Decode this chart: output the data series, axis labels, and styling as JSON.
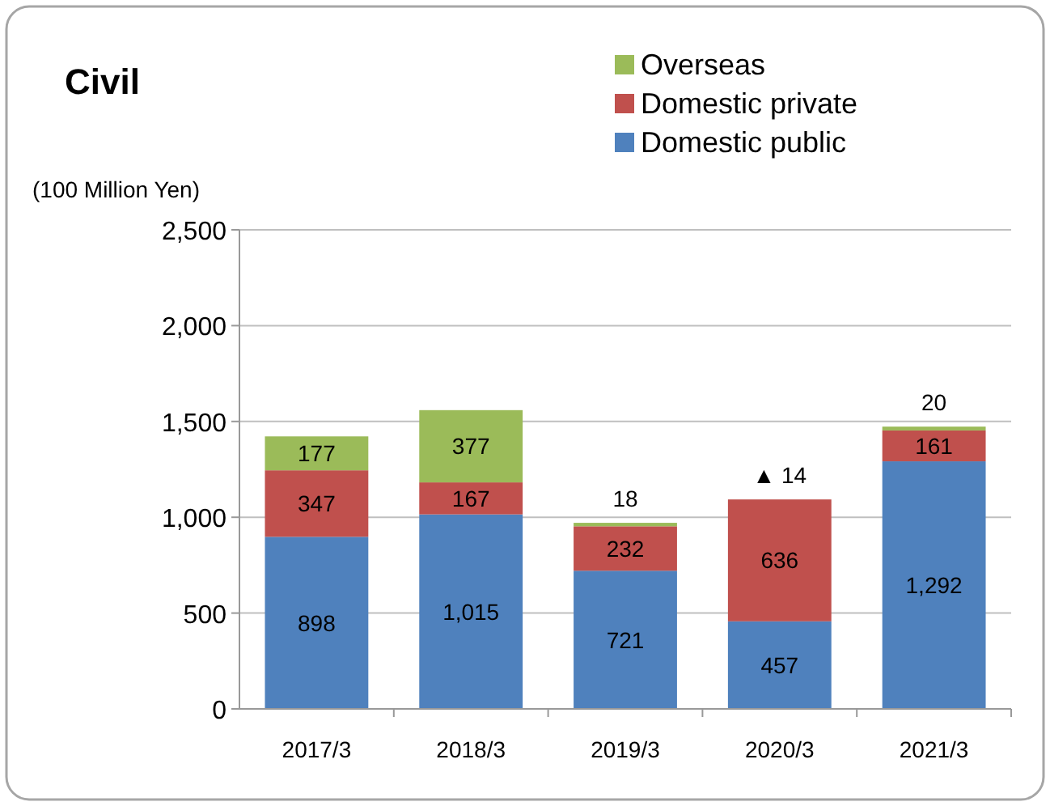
{
  "chart_data": {
    "type": "bar",
    "title": "Civil",
    "ylabel": "(100 Million Yen)",
    "stacked": true,
    "categories": [
      "2017/3",
      "2018/3",
      "2019/3",
      "2020/3",
      "2021/3"
    ],
    "series": [
      {
        "name": "Domestic public",
        "color": "#4f81bd",
        "values": [
          898,
          1015,
          721,
          457,
          1292
        ],
        "value_labels": [
          "898",
          "1,015",
          "721",
          "457",
          "1,292"
        ]
      },
      {
        "name": "Domestic private",
        "color": "#c0504d",
        "values": [
          347,
          167,
          232,
          636,
          161
        ],
        "value_labels": [
          "347",
          "167",
          "232",
          "636",
          "161"
        ]
      },
      {
        "name": "Overseas",
        "color": "#9bbb59",
        "values": [
          177,
          377,
          18,
          null,
          20
        ],
        "value_labels": [
          "177",
          "377",
          "18",
          null,
          "20"
        ]
      }
    ],
    "ylim": [
      0,
      2500
    ],
    "yticks": [
      0,
      500,
      {
        "value": 1000,
        "label": "1,000"
      },
      {
        "value": 1500,
        "label": "1,500"
      },
      {
        "value": 2000,
        "label": "2,000"
      },
      {
        "value": 2500,
        "label": "2,500"
      }
    ],
    "annotations": [
      {
        "text": "▲ 14",
        "x": "2020/3",
        "y": 1093
      }
    ],
    "grid": "y",
    "legend": "top right"
  }
}
